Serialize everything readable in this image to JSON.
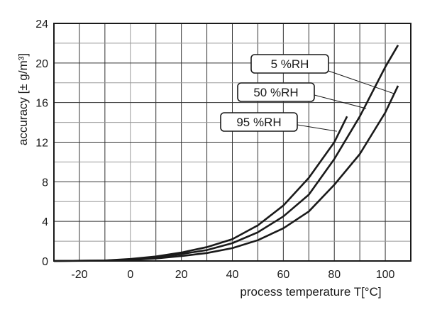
{
  "chart_data": {
    "type": "line",
    "title": "",
    "xlabel": "process temperature T[°C]",
    "ylabel": "accuracy  [± g/m³]",
    "xlim": [
      -30,
      110
    ],
    "ylim": [
      0,
      24
    ],
    "xticks": [
      -20,
      0,
      20,
      40,
      60,
      80,
      100
    ],
    "yticks": [
      0,
      4,
      8,
      12,
      16,
      20,
      24
    ],
    "grid": true,
    "x_grid_step": 10,
    "y_grid_step": 2,
    "line_color": "#1a1a1a",
    "series": [
      {
        "name": "95 %RH",
        "x": [
          -30,
          -10,
          0,
          10,
          20,
          30,
          40,
          50,
          60,
          70,
          80,
          85
        ],
        "y": [
          0,
          0.05,
          0.2,
          0.45,
          0.85,
          1.4,
          2.2,
          3.6,
          5.6,
          8.4,
          12.0,
          14.6
        ]
      },
      {
        "name": "50 %RH",
        "x": [
          -30,
          -10,
          0,
          10,
          20,
          30,
          40,
          50,
          60,
          70,
          80,
          90,
          100,
          105
        ],
        "y": [
          0,
          0.04,
          0.15,
          0.35,
          0.7,
          1.1,
          1.8,
          2.9,
          4.5,
          6.7,
          10.3,
          14.6,
          19.6,
          21.8
        ]
      },
      {
        "name": "5 %RH",
        "x": [
          -30,
          -10,
          0,
          10,
          20,
          30,
          40,
          50,
          60,
          70,
          80,
          90,
          100,
          105
        ],
        "y": [
          0,
          0.03,
          0.1,
          0.25,
          0.5,
          0.8,
          1.3,
          2.1,
          3.3,
          5.0,
          7.7,
          10.8,
          15.0,
          17.7
        ]
      }
    ],
    "annotations": [
      {
        "text": "5 %RH",
        "points_to": {
          "x": 103.5,
          "y": 16.9
        }
      },
      {
        "text": "50 %RH",
        "points_to": {
          "x": 92.5,
          "y": 15.4
        }
      },
      {
        "text": "95 %RH",
        "points_to": {
          "x": 81,
          "y": 13.1
        }
      }
    ]
  }
}
